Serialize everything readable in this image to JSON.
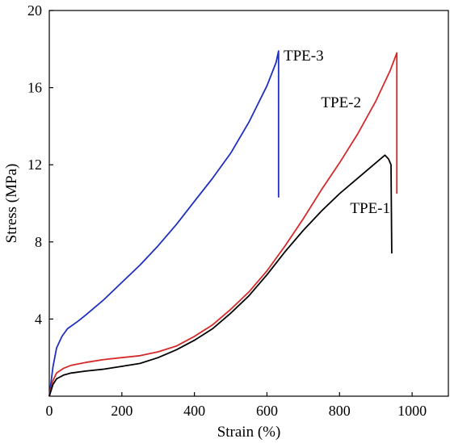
{
  "chart_data": {
    "type": "line",
    "title": "",
    "xlabel": "Strain (%)",
    "ylabel": "Stress (MPa)",
    "xlim": [
      0,
      1100
    ],
    "ylim": [
      0,
      20
    ],
    "xticks": [
      0,
      200,
      400,
      600,
      800,
      1000
    ],
    "yticks": [
      4,
      8,
      12,
      16,
      20
    ],
    "xtick_labels": [
      "0",
      "200",
      "400",
      "600",
      "800",
      "1000"
    ],
    "ytick_labels": [
      "4",
      "8",
      "12",
      "16",
      "20"
    ],
    "grid": false,
    "legend": "none (series labels placed next to curves)",
    "series": [
      {
        "name": "TPE-3",
        "color": "#1f2fbf",
        "points": [
          [
            0,
            0
          ],
          [
            10,
            1.5
          ],
          [
            20,
            2.5
          ],
          [
            35,
            3.1
          ],
          [
            50,
            3.5
          ],
          [
            80,
            3.9
          ],
          [
            100,
            4.2
          ],
          [
            150,
            5.0
          ],
          [
            200,
            5.9
          ],
          [
            250,
            6.8
          ],
          [
            300,
            7.8
          ],
          [
            350,
            8.9
          ],
          [
            400,
            10.1
          ],
          [
            450,
            11.3
          ],
          [
            500,
            12.6
          ],
          [
            550,
            14.2
          ],
          [
            600,
            16.1
          ],
          [
            625,
            17.3
          ],
          [
            632,
            17.9
          ],
          [
            632,
            10.3
          ]
        ]
      },
      {
        "name": "TPE-2",
        "color": "#d62a2a",
        "points": [
          [
            0,
            0
          ],
          [
            10,
            0.8
          ],
          [
            20,
            1.2
          ],
          [
            40,
            1.45
          ],
          [
            60,
            1.6
          ],
          [
            100,
            1.75
          ],
          [
            150,
            1.9
          ],
          [
            200,
            2.0
          ],
          [
            250,
            2.1
          ],
          [
            300,
            2.3
          ],
          [
            350,
            2.6
          ],
          [
            400,
            3.1
          ],
          [
            450,
            3.7
          ],
          [
            500,
            4.5
          ],
          [
            550,
            5.4
          ],
          [
            600,
            6.5
          ],
          [
            650,
            7.8
          ],
          [
            700,
            9.2
          ],
          [
            750,
            10.7
          ],
          [
            800,
            12.1
          ],
          [
            850,
            13.6
          ],
          [
            900,
            15.3
          ],
          [
            940,
            16.9
          ],
          [
            958,
            17.8
          ],
          [
            958,
            10.5
          ]
        ]
      },
      {
        "name": "TPE-1",
        "color": "#000000",
        "points": [
          [
            0,
            0
          ],
          [
            10,
            0.6
          ],
          [
            20,
            0.9
          ],
          [
            40,
            1.1
          ],
          [
            60,
            1.2
          ],
          [
            100,
            1.3
          ],
          [
            150,
            1.4
          ],
          [
            200,
            1.55
          ],
          [
            250,
            1.7
          ],
          [
            300,
            2.0
          ],
          [
            350,
            2.4
          ],
          [
            400,
            2.9
          ],
          [
            450,
            3.5
          ],
          [
            500,
            4.3
          ],
          [
            550,
            5.2
          ],
          [
            600,
            6.3
          ],
          [
            650,
            7.5
          ],
          [
            700,
            8.6
          ],
          [
            750,
            9.6
          ],
          [
            800,
            10.5
          ],
          [
            850,
            11.3
          ],
          [
            900,
            12.1
          ],
          [
            925,
            12.5
          ],
          [
            935,
            12.3
          ],
          [
            942,
            12.0
          ],
          [
            944,
            7.4
          ]
        ]
      }
    ]
  }
}
